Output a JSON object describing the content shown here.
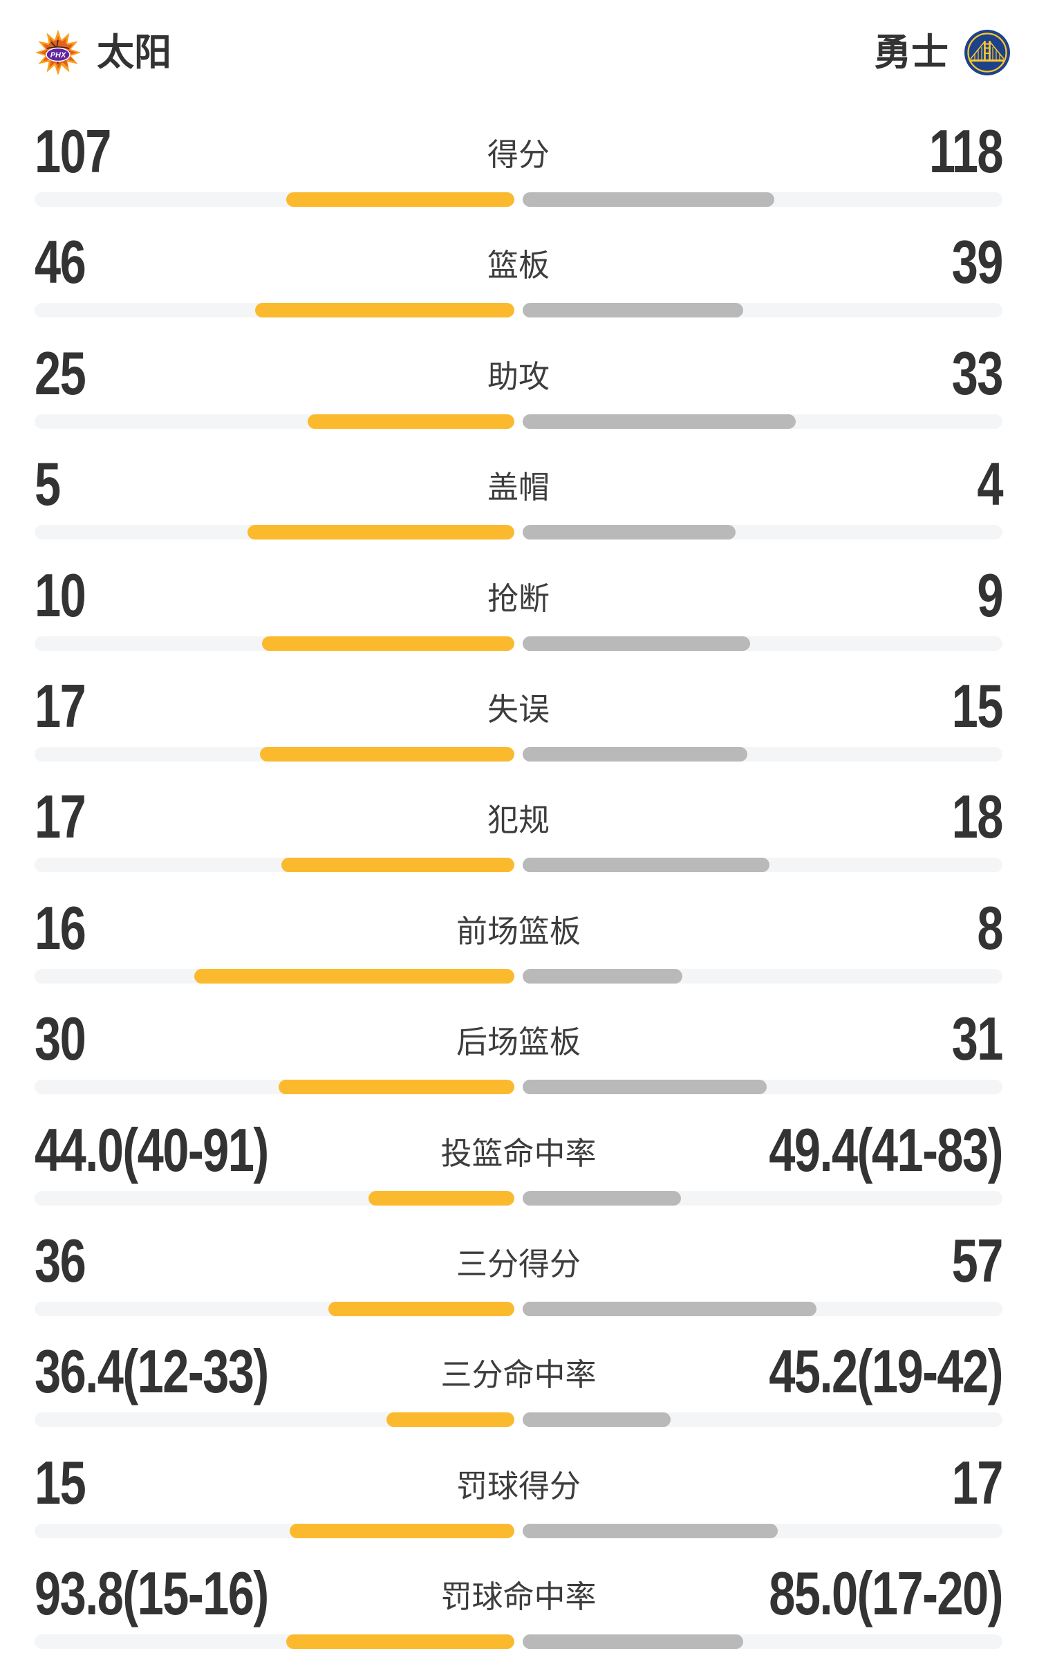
{
  "header": {
    "left_team": {
      "name": "太阳",
      "logo": "phoenix-suns",
      "logo_text": "PHX"
    },
    "right_team": {
      "name": "勇士",
      "logo": "golden-state-warriors"
    }
  },
  "colors": {
    "left_bar_fill": "#FBBA2E",
    "right_bar_fill": "#B9B9B9",
    "bar_track": "#F4F5F7",
    "value_text": "#333333",
    "label_text": "#3D3D3D",
    "suns_orange": "#F9A01B",
    "suns_dark_orange": "#E56020",
    "suns_purple": "#5F259F",
    "warriors_blue": "#1D428A",
    "warriors_gold": "#FFC72C"
  },
  "chart_data": {
    "type": "bar",
    "layout": "diverging-comparison",
    "teams": [
      "太阳",
      "勇士"
    ],
    "categories": [
      "得分",
      "篮板",
      "助攻",
      "盖帽",
      "抢断",
      "失误",
      "犯规",
      "前场篮板",
      "后场篮板",
      "投篮命中率",
      "三分得分",
      "三分命中率",
      "罚球得分",
      "罚球命中率"
    ],
    "series": [
      {
        "name": "太阳",
        "values": [
          107,
          46,
          25,
          5,
          10,
          17,
          17,
          16,
          30,
          44.0,
          36,
          36.4,
          15,
          93.8
        ]
      },
      {
        "name": "勇士",
        "values": [
          118,
          39,
          33,
          4,
          9,
          15,
          18,
          8,
          31,
          49.4,
          57,
          45.2,
          17,
          85.0
        ]
      }
    ],
    "legend_position": "none",
    "grid": false,
    "rows": [
      {
        "label": "得分",
        "left": "107",
        "right": "118",
        "left_fill_pct": 47.6,
        "right_fill_pct": 52.4
      },
      {
        "label": "篮板",
        "left": "46",
        "right": "39",
        "left_fill_pct": 54.1,
        "right_fill_pct": 45.9
      },
      {
        "label": "助攻",
        "left": "25",
        "right": "33",
        "left_fill_pct": 43.1,
        "right_fill_pct": 56.9
      },
      {
        "label": "盖帽",
        "left": "5",
        "right": "4",
        "left_fill_pct": 55.6,
        "right_fill_pct": 44.4
      },
      {
        "label": "抢断",
        "left": "10",
        "right": "9",
        "left_fill_pct": 52.6,
        "right_fill_pct": 47.4
      },
      {
        "label": "失误",
        "left": "17",
        "right": "15",
        "left_fill_pct": 53.1,
        "right_fill_pct": 46.9
      },
      {
        "label": "犯规",
        "left": "17",
        "right": "18",
        "left_fill_pct": 48.6,
        "right_fill_pct": 51.4
      },
      {
        "label": "前场篮板",
        "left": "16",
        "right": "8",
        "left_fill_pct": 66.7,
        "right_fill_pct": 33.3
      },
      {
        "label": "后场篮板",
        "left": "30",
        "right": "31",
        "left_fill_pct": 49.2,
        "right_fill_pct": 50.8
      },
      {
        "label": "投篮命中率",
        "left": "44.0(40-91)",
        "right": "49.4(41-83)",
        "left_fill_pct": 30.4,
        "right_fill_pct": 33.0
      },
      {
        "label": "三分得分",
        "left": "36",
        "right": "57",
        "left_fill_pct": 38.7,
        "right_fill_pct": 61.3
      },
      {
        "label": "三分命中率",
        "left": "36.4(12-33)",
        "right": "45.2(19-42)",
        "left_fill_pct": 26.6,
        "right_fill_pct": 30.8
      },
      {
        "label": "罚球得分",
        "left": "15",
        "right": "17",
        "left_fill_pct": 46.9,
        "right_fill_pct": 53.1
      },
      {
        "label": "罚球命中率",
        "left": "93.8(15-16)",
        "right": "85.0(17-20)",
        "left_fill_pct": 47.6,
        "right_fill_pct": 45.9
      }
    ]
  }
}
